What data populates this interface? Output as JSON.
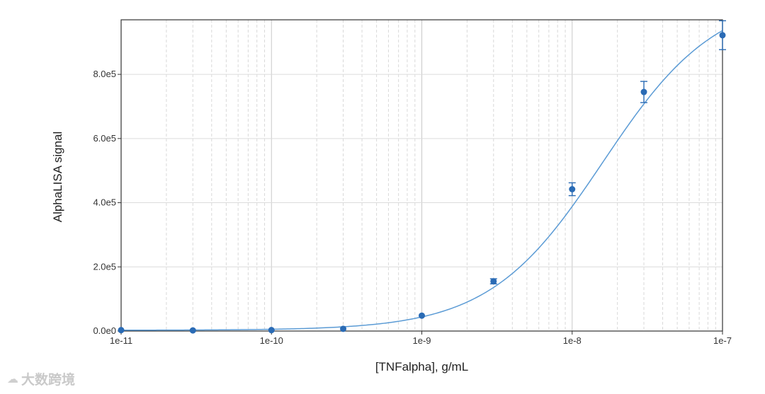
{
  "chart_data": {
    "type": "scatter",
    "title": "",
    "xlabel": "[TNFalpha], g/mL",
    "ylabel": "AlphaLISA signal",
    "x_scale": "log",
    "xlim": [
      1e-11,
      1e-07
    ],
    "ylim": [
      0,
      970000
    ],
    "x_ticks": [
      {
        "value": 1e-11,
        "label": "1e-11"
      },
      {
        "value": 1e-10,
        "label": "1e-10"
      },
      {
        "value": 1e-09,
        "label": "1e-9"
      },
      {
        "value": 1e-08,
        "label": "1e-8"
      },
      {
        "value": 1e-07,
        "label": "1e-7"
      }
    ],
    "y_ticks": [
      {
        "value": 0,
        "label": "0.0e0"
      },
      {
        "value": 200000,
        "label": "2.0e5"
      },
      {
        "value": 400000,
        "label": "4.0e5"
      },
      {
        "value": 600000,
        "label": "6.0e5"
      },
      {
        "value": 800000,
        "label": "8.0e5"
      }
    ],
    "grid": {
      "x_minor": true,
      "y_major": true
    },
    "series": [
      {
        "color": "#2a6bb5",
        "points": [
          {
            "x": 1e-11,
            "y": 3000,
            "err": 0
          },
          {
            "x": 3e-11,
            "y": 2000,
            "err": 0
          },
          {
            "x": 1e-10,
            "y": 3000,
            "err": 0
          },
          {
            "x": 3e-10,
            "y": 7000,
            "err": 0
          },
          {
            "x": 1e-09,
            "y": 48000,
            "err": 0
          },
          {
            "x": 3e-09,
            "y": 155000,
            "err": 8000
          },
          {
            "x": 1e-08,
            "y": 442000,
            "err": 20000
          },
          {
            "x": 3e-08,
            "y": 745000,
            "err": 33000
          },
          {
            "x": 1e-07,
            "y": 922000,
            "err": 45000
          }
        ]
      }
    ],
    "fit_curve": {
      "model": "4PL",
      "bottom": 2500,
      "top": 1050000,
      "ec50": 1.6e-08,
      "hill": 1.15,
      "color": "#5b9bd5"
    }
  },
  "watermark": {
    "icon": "cloud-icon",
    "text": "大数跨境"
  }
}
